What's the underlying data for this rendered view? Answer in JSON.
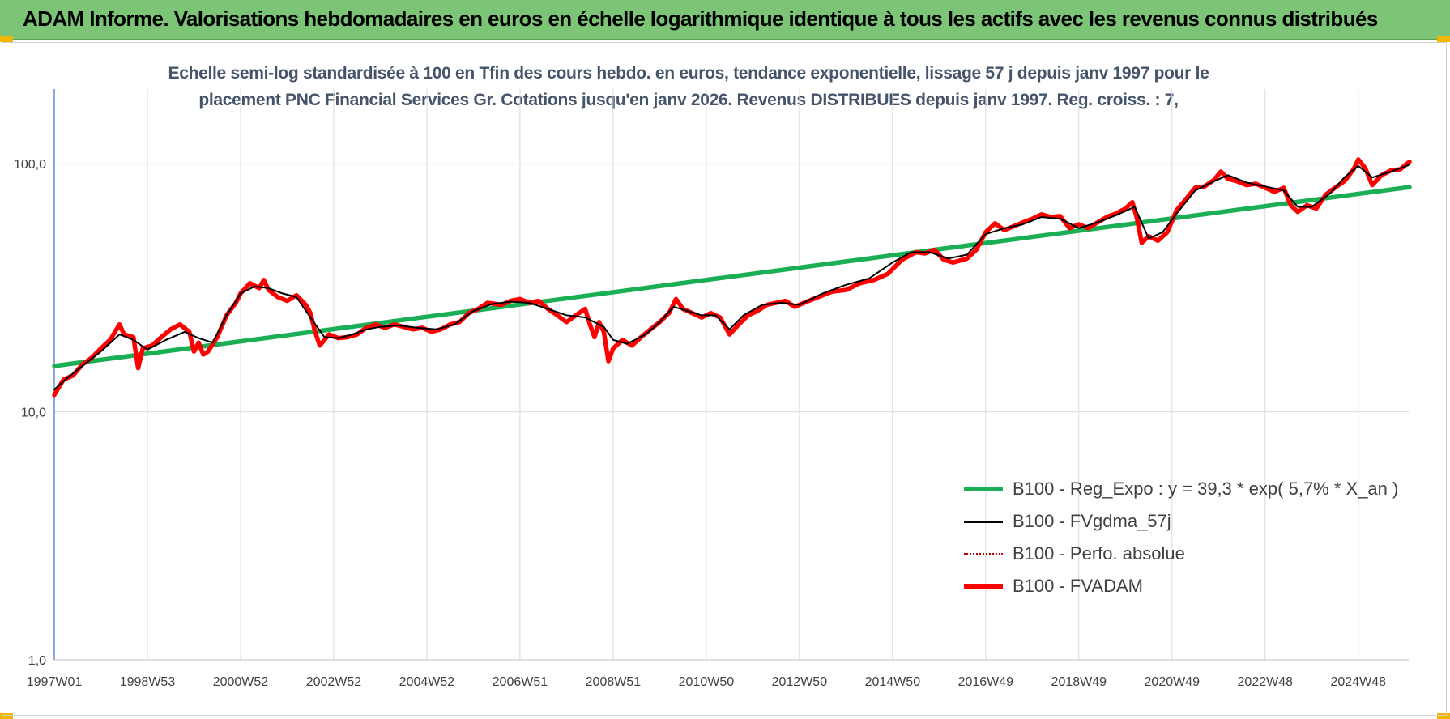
{
  "header": {
    "title": "ADAM Informe. Valorisations hebdomadaires en euros en échelle logarithmique identique à tous les actifs avec les revenus connus distribués"
  },
  "chart_data": {
    "type": "line",
    "title_line1": "Echelle semi-log standardisée à 100 en Tfin des cours hebdo. en euros, tendance exponentielle, lissage 57 j depuis janv 1997 pour le",
    "title_line2": "placement PNC Financial Services Gr. Cotations jusqu'en janv 2026. Revenus DISTRIBUES depuis janv 1997. Reg. croiss. : 7,",
    "y_scale": "log",
    "ylim": [
      1,
      200
    ],
    "y_ticks": [
      {
        "value": 1,
        "label": "1,0"
      },
      {
        "value": 10,
        "label": "10,0"
      },
      {
        "value": 100,
        "label": "100,0"
      }
    ],
    "xlim": [
      1997.0,
      2026.1
    ],
    "x_ticks": [
      {
        "value": 1997.0,
        "label": "1997W01"
      },
      {
        "value": 1999.0,
        "label": "1998W53"
      },
      {
        "value": 2001.0,
        "label": "2000W52"
      },
      {
        "value": 2003.0,
        "label": "2002W52"
      },
      {
        "value": 2005.0,
        "label": "2004W52"
      },
      {
        "value": 2007.0,
        "label": "2006W51"
      },
      {
        "value": 2009.0,
        "label": "2008W51"
      },
      {
        "value": 2011.0,
        "label": "2010W50"
      },
      {
        "value": 2013.0,
        "label": "2012W50"
      },
      {
        "value": 2015.0,
        "label": "2014W50"
      },
      {
        "value": 2017.0,
        "label": "2016W49"
      },
      {
        "value": 2019.0,
        "label": "2018W49"
      },
      {
        "value": 2021.0,
        "label": "2020W49"
      },
      {
        "value": 2023.0,
        "label": "2022W48"
      },
      {
        "value": 2025.0,
        "label": "2024W48"
      }
    ],
    "grid": "vertical-and-horizontal",
    "legend_position": "bottom-right",
    "series": [
      {
        "name": "B100 - Reg_Expo : y = 39,3 * exp( 5,7% *  X_an )",
        "color": "#1aaf54",
        "style": "solid-thick",
        "points": [
          [
            1997.0,
            15.3
          ],
          [
            2026.1,
            80.5
          ]
        ]
      },
      {
        "name": "B100 - FVgdma_57j",
        "color": "#000000",
        "style": "solid",
        "points": [
          [
            1997.0,
            12.3
          ],
          [
            1997.3,
            13.8
          ],
          [
            1997.6,
            15.3
          ],
          [
            1998.0,
            17.5
          ],
          [
            1998.4,
            20.5
          ],
          [
            1998.7,
            19.5
          ],
          [
            1999.0,
            17.8
          ],
          [
            1999.4,
            19.5
          ],
          [
            1999.8,
            21.0
          ],
          [
            2000.1,
            19.8
          ],
          [
            2000.4,
            19.0
          ],
          [
            2000.7,
            24.5
          ],
          [
            2001.0,
            30.0
          ],
          [
            2001.3,
            32.0
          ],
          [
            2001.6,
            31.5
          ],
          [
            2001.9,
            30.0
          ],
          [
            2002.2,
            29.0
          ],
          [
            2002.5,
            24.0
          ],
          [
            2002.8,
            20.0
          ],
          [
            2003.1,
            19.8
          ],
          [
            2003.4,
            20.5
          ],
          [
            2003.7,
            21.5
          ],
          [
            2004.0,
            22.0
          ],
          [
            2004.4,
            22.3
          ],
          [
            2004.8,
            21.8
          ],
          [
            2005.2,
            21.5
          ],
          [
            2005.6,
            22.5
          ],
          [
            2006.0,
            25.5
          ],
          [
            2006.4,
            27.2
          ],
          [
            2006.8,
            27.8
          ],
          [
            2007.2,
            27.5
          ],
          [
            2007.6,
            26.0
          ],
          [
            2008.0,
            24.5
          ],
          [
            2008.4,
            24.0
          ],
          [
            2008.8,
            22.0
          ],
          [
            2009.0,
            19.5
          ],
          [
            2009.3,
            18.8
          ],
          [
            2009.7,
            20.5
          ],
          [
            2010.0,
            23.0
          ],
          [
            2010.3,
            26.5
          ],
          [
            2010.6,
            25.5
          ],
          [
            2010.9,
            24.5
          ],
          [
            2011.2,
            24.5
          ],
          [
            2011.5,
            21.5
          ],
          [
            2011.8,
            24.5
          ],
          [
            2012.2,
            27.0
          ],
          [
            2012.6,
            27.5
          ],
          [
            2013.0,
            27.0
          ],
          [
            2013.5,
            30.0
          ],
          [
            2014.0,
            32.5
          ],
          [
            2014.5,
            34.5
          ],
          [
            2015.0,
            40.0
          ],
          [
            2015.4,
            44.0
          ],
          [
            2015.8,
            44.0
          ],
          [
            2016.2,
            41.5
          ],
          [
            2016.6,
            43.0
          ],
          [
            2017.0,
            52.0
          ],
          [
            2017.4,
            55.0
          ],
          [
            2017.8,
            57.0
          ],
          [
            2018.2,
            61.0
          ],
          [
            2018.6,
            60.0
          ],
          [
            2019.0,
            55.0
          ],
          [
            2019.4,
            58.0
          ],
          [
            2019.8,
            62.0
          ],
          [
            2020.2,
            67.0
          ],
          [
            2020.5,
            50.0
          ],
          [
            2020.8,
            53.0
          ],
          [
            2021.1,
            63.0
          ],
          [
            2021.5,
            78.0
          ],
          [
            2021.9,
            85.0
          ],
          [
            2022.2,
            90.0
          ],
          [
            2022.6,
            84.0
          ],
          [
            2023.0,
            81.0
          ],
          [
            2023.4,
            78.0
          ],
          [
            2023.7,
            67.0
          ],
          [
            2024.0,
            67.0
          ],
          [
            2024.4,
            76.0
          ],
          [
            2024.7,
            88.0
          ],
          [
            2025.0,
            98.0
          ],
          [
            2025.3,
            88.0
          ],
          [
            2025.7,
            93.0
          ],
          [
            2026.1,
            99.0
          ]
        ]
      },
      {
        "name": "B100 - Perfo. absolue",
        "color": "#c00000",
        "style": "dotted",
        "points": []
      },
      {
        "name": "B100 - FVADAM",
        "color": "#ff0000",
        "style": "solid-thick",
        "points": [
          [
            1997.0,
            11.7
          ],
          [
            1997.2,
            13.5
          ],
          [
            1997.4,
            14.0
          ],
          [
            1997.6,
            15.5
          ],
          [
            1997.8,
            16.5
          ],
          [
            1998.0,
            18.0
          ],
          [
            1998.2,
            19.5
          ],
          [
            1998.4,
            22.5
          ],
          [
            1998.5,
            20.5
          ],
          [
            1998.7,
            20.0
          ],
          [
            1998.8,
            15.0
          ],
          [
            1998.9,
            18.0
          ],
          [
            1999.1,
            18.5
          ],
          [
            1999.3,
            20.0
          ],
          [
            1999.5,
            21.5
          ],
          [
            1999.7,
            22.5
          ],
          [
            1999.9,
            21.0
          ],
          [
            2000.0,
            17.5
          ],
          [
            2000.1,
            19.0
          ],
          [
            2000.2,
            17.0
          ],
          [
            2000.3,
            17.5
          ],
          [
            2000.5,
            20.0
          ],
          [
            2000.7,
            24.5
          ],
          [
            2000.9,
            27.5
          ],
          [
            2001.0,
            30.0
          ],
          [
            2001.2,
            33.0
          ],
          [
            2001.4,
            31.5
          ],
          [
            2001.5,
            34.0
          ],
          [
            2001.6,
            31.0
          ],
          [
            2001.8,
            29.0
          ],
          [
            2002.0,
            28.0
          ],
          [
            2002.2,
            29.5
          ],
          [
            2002.4,
            27.0
          ],
          [
            2002.5,
            25.0
          ],
          [
            2002.6,
            21.0
          ],
          [
            2002.7,
            18.5
          ],
          [
            2002.9,
            20.5
          ],
          [
            2003.1,
            19.8
          ],
          [
            2003.3,
            20.0
          ],
          [
            2003.5,
            20.5
          ],
          [
            2003.7,
            21.8
          ],
          [
            2003.9,
            22.5
          ],
          [
            2004.1,
            21.8
          ],
          [
            2004.3,
            22.5
          ],
          [
            2004.5,
            22.0
          ],
          [
            2004.7,
            21.5
          ],
          [
            2004.9,
            21.8
          ],
          [
            2005.1,
            21.0
          ],
          [
            2005.3,
            21.5
          ],
          [
            2005.5,
            22.5
          ],
          [
            2005.7,
            23.0
          ],
          [
            2005.9,
            25.0
          ],
          [
            2006.1,
            26.0
          ],
          [
            2006.3,
            27.5
          ],
          [
            2006.6,
            27.0
          ],
          [
            2006.8,
            28.0
          ],
          [
            2007.0,
            28.5
          ],
          [
            2007.2,
            27.5
          ],
          [
            2007.4,
            28.0
          ],
          [
            2007.6,
            26.0
          ],
          [
            2007.8,
            24.5
          ],
          [
            2008.0,
            23.0
          ],
          [
            2008.2,
            24.5
          ],
          [
            2008.4,
            26.0
          ],
          [
            2008.5,
            22.5
          ],
          [
            2008.6,
            20.0
          ],
          [
            2008.7,
            23.0
          ],
          [
            2008.8,
            21.0
          ],
          [
            2008.9,
            16.0
          ],
          [
            2009.0,
            18.0
          ],
          [
            2009.2,
            19.5
          ],
          [
            2009.4,
            18.5
          ],
          [
            2009.6,
            20.0
          ],
          [
            2009.8,
            21.5
          ],
          [
            2010.0,
            23.0
          ],
          [
            2010.2,
            25.0
          ],
          [
            2010.35,
            28.5
          ],
          [
            2010.5,
            26.0
          ],
          [
            2010.7,
            25.0
          ],
          [
            2010.9,
            24.0
          ],
          [
            2011.1,
            25.0
          ],
          [
            2011.3,
            24.0
          ],
          [
            2011.5,
            20.5
          ],
          [
            2011.7,
            22.5
          ],
          [
            2011.9,
            24.5
          ],
          [
            2012.1,
            25.5
          ],
          [
            2012.3,
            27.0
          ],
          [
            2012.5,
            27.5
          ],
          [
            2012.7,
            28.0
          ],
          [
            2012.9,
            26.5
          ],
          [
            2013.1,
            27.5
          ],
          [
            2013.4,
            29.0
          ],
          [
            2013.7,
            30.5
          ],
          [
            2014.0,
            31.0
          ],
          [
            2014.3,
            33.0
          ],
          [
            2014.6,
            34.0
          ],
          [
            2014.9,
            36.0
          ],
          [
            2015.2,
            41.0
          ],
          [
            2015.5,
            44.0
          ],
          [
            2015.7,
            43.5
          ],
          [
            2015.9,
            45.0
          ],
          [
            2016.1,
            41.0
          ],
          [
            2016.3,
            40.0
          ],
          [
            2016.6,
            41.5
          ],
          [
            2016.8,
            45.0
          ],
          [
            2017.0,
            53.0
          ],
          [
            2017.2,
            57.5
          ],
          [
            2017.4,
            54.0
          ],
          [
            2017.6,
            56.0
          ],
          [
            2017.8,
            58.0
          ],
          [
            2018.0,
            60.0
          ],
          [
            2018.2,
            62.5
          ],
          [
            2018.4,
            61.0
          ],
          [
            2018.6,
            61.5
          ],
          [
            2018.8,
            55.0
          ],
          [
            2019.0,
            57.0
          ],
          [
            2019.2,
            55.0
          ],
          [
            2019.4,
            58.0
          ],
          [
            2019.6,
            61.0
          ],
          [
            2019.8,
            63.0
          ],
          [
            2020.0,
            66.0
          ],
          [
            2020.15,
            70.0
          ],
          [
            2020.25,
            60.0
          ],
          [
            2020.35,
            48.0
          ],
          [
            2020.5,
            51.0
          ],
          [
            2020.7,
            49.0
          ],
          [
            2020.9,
            53.0
          ],
          [
            2021.1,
            65.0
          ],
          [
            2021.3,
            72.0
          ],
          [
            2021.5,
            80.0
          ],
          [
            2021.7,
            81.0
          ],
          [
            2021.9,
            86.0
          ],
          [
            2022.05,
            93.0
          ],
          [
            2022.2,
            87.0
          ],
          [
            2022.4,
            85.0
          ],
          [
            2022.6,
            82.0
          ],
          [
            2022.8,
            83.0
          ],
          [
            2023.0,
            80.0
          ],
          [
            2023.2,
            77.0
          ],
          [
            2023.4,
            80.0
          ],
          [
            2023.55,
            68.0
          ],
          [
            2023.7,
            64.0
          ],
          [
            2023.9,
            68.0
          ],
          [
            2024.1,
            66.0
          ],
          [
            2024.3,
            75.0
          ],
          [
            2024.5,
            80.0
          ],
          [
            2024.7,
            85.0
          ],
          [
            2024.9,
            95.0
          ],
          [
            2025.0,
            104.0
          ],
          [
            2025.15,
            96.0
          ],
          [
            2025.3,
            82.0
          ],
          [
            2025.5,
            90.0
          ],
          [
            2025.7,
            94.0
          ],
          [
            2025.9,
            95.0
          ],
          [
            2026.1,
            102.0
          ]
        ]
      }
    ]
  }
}
